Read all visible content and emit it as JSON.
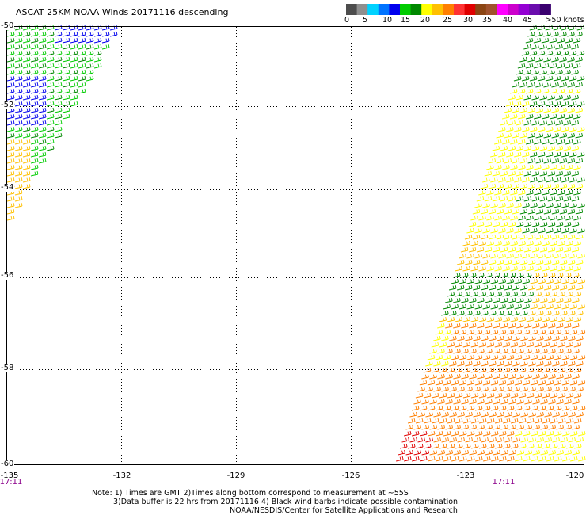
{
  "header": {
    "title": "ASCAT 25KM NOAA Winds 20171116 descending"
  },
  "speed_scale": {
    "colors": [
      "#4d4d4d",
      "#8f8f8f",
      "#00d2ff",
      "#0073ff",
      "#0000ee",
      "#00cc00",
      "#008800",
      "#ffff00",
      "#ffc000",
      "#ff7f00",
      "#ff3333",
      "#e00000",
      "#8b4513",
      "#a0522d",
      "#ff00ff",
      "#cc00cc",
      "#9400d3",
      "#6a0dad",
      "#3a006f"
    ],
    "labels": [
      "0",
      "5",
      "10",
      "15",
      "20",
      "25",
      "30",
      "35",
      "40",
      "45",
      ">50 knots"
    ]
  },
  "map": {
    "lat_labels": [
      "-50",
      "-52",
      "-54",
      "-56",
      "-58",
      "-60"
    ],
    "lon_labels": [
      "-135",
      "-132",
      "-129",
      "-126",
      "-123",
      "-120"
    ],
    "time_labels": [
      "17:11",
      "17:11"
    ]
  },
  "notes": {
    "line1": "Note: 1) Times are GMT 2)Times along bottom correspond to measurement at ~55S",
    "line2": "3)Data buffer is 22 hrs from 20171116 4) Black wind barbs indicate possible contamination",
    "line3": "NOAA/NESDIS/Center for Satellite Applications and Research"
  }
}
